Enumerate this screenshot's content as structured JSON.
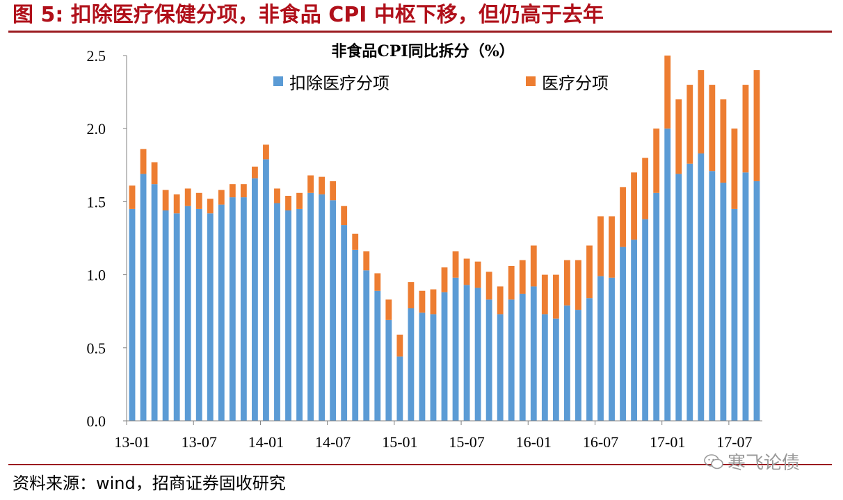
{
  "figure": {
    "title": "图 5: 扣除医疗保健分项，非食品 CPI 中枢下移，但仍高于去年",
    "source": "资料来源：wind，招商证券固收研究",
    "watermark": "寒飞论债"
  },
  "colors": {
    "title_red": "#b0101a",
    "rule": "#9b1b20",
    "series_blue": "#5b9bd5",
    "series_orange": "#ed7d31"
  },
  "chart_data": {
    "type": "bar",
    "stacked": true,
    "title": "非食品CPI同比拆分（%）",
    "xlabel": "",
    "ylabel": "",
    "ylim": [
      0,
      2.5
    ],
    "yticks": [
      "0.0",
      "0.5",
      "1.0",
      "1.5",
      "2.0",
      "2.5"
    ],
    "xtick_labels": [
      "13-01",
      "13-07",
      "14-01",
      "14-07",
      "15-01",
      "15-07",
      "16-01",
      "16-07",
      "17-01",
      "17-07"
    ],
    "legend_position": "top",
    "categories": [
      "2013-01",
      "2013-02",
      "2013-03",
      "2013-04",
      "2013-05",
      "2013-06",
      "2013-07",
      "2013-08",
      "2013-09",
      "2013-10",
      "2013-11",
      "2013-12",
      "2014-01",
      "2014-02",
      "2014-03",
      "2014-04",
      "2014-05",
      "2014-06",
      "2014-07",
      "2014-08",
      "2014-09",
      "2014-10",
      "2014-11",
      "2014-12",
      "2015-01",
      "2015-02",
      "2015-03",
      "2015-04",
      "2015-05",
      "2015-06",
      "2015-07",
      "2015-08",
      "2015-09",
      "2015-10",
      "2015-11",
      "2015-12",
      "2016-01",
      "2016-02",
      "2016-03",
      "2016-04",
      "2016-05",
      "2016-06",
      "2016-07",
      "2016-08",
      "2016-09",
      "2016-10",
      "2016-11",
      "2016-12",
      "2017-01",
      "2017-02",
      "2017-03",
      "2017-04",
      "2017-05",
      "2017-06",
      "2017-07",
      "2017-08",
      "2017-09"
    ],
    "series": [
      {
        "name": "扣除医疗分项",
        "color": "#5b9bd5",
        "values": [
          1.45,
          1.69,
          1.62,
          1.44,
          1.42,
          1.47,
          1.45,
          1.42,
          1.48,
          1.53,
          1.53,
          1.66,
          1.79,
          1.49,
          1.44,
          1.45,
          1.56,
          1.55,
          1.51,
          1.34,
          1.17,
          1.03,
          0.89,
          0.69,
          0.44,
          0.77,
          0.74,
          0.73,
          0.88,
          0.98,
          0.93,
          0.91,
          0.83,
          0.73,
          0.83,
          0.87,
          0.92,
          0.73,
          0.7,
          0.79,
          0.76,
          0.84,
          0.99,
          0.98,
          1.19,
          1.24,
          1.38,
          1.56,
          2.0,
          1.69,
          1.76,
          1.83,
          1.71,
          1.63,
          1.45,
          1.7,
          1.64
        ]
      },
      {
        "name": "医疗分项",
        "color": "#ed7d31",
        "values": [
          0.16,
          0.17,
          0.15,
          0.14,
          0.13,
          0.12,
          0.11,
          0.1,
          0.1,
          0.09,
          0.09,
          0.08,
          0.1,
          0.1,
          0.1,
          0.11,
          0.12,
          0.12,
          0.13,
          0.13,
          0.11,
          0.13,
          0.12,
          0.14,
          0.15,
          0.18,
          0.15,
          0.17,
          0.17,
          0.18,
          0.18,
          0.18,
          0.19,
          0.19,
          0.23,
          0.23,
          0.28,
          0.27,
          0.3,
          0.31,
          0.34,
          0.36,
          0.41,
          0.42,
          0.41,
          0.46,
          0.42,
          0.44,
          0.5,
          0.51,
          0.54,
          0.57,
          0.59,
          0.57,
          0.55,
          0.6,
          0.76
        ]
      }
    ]
  }
}
